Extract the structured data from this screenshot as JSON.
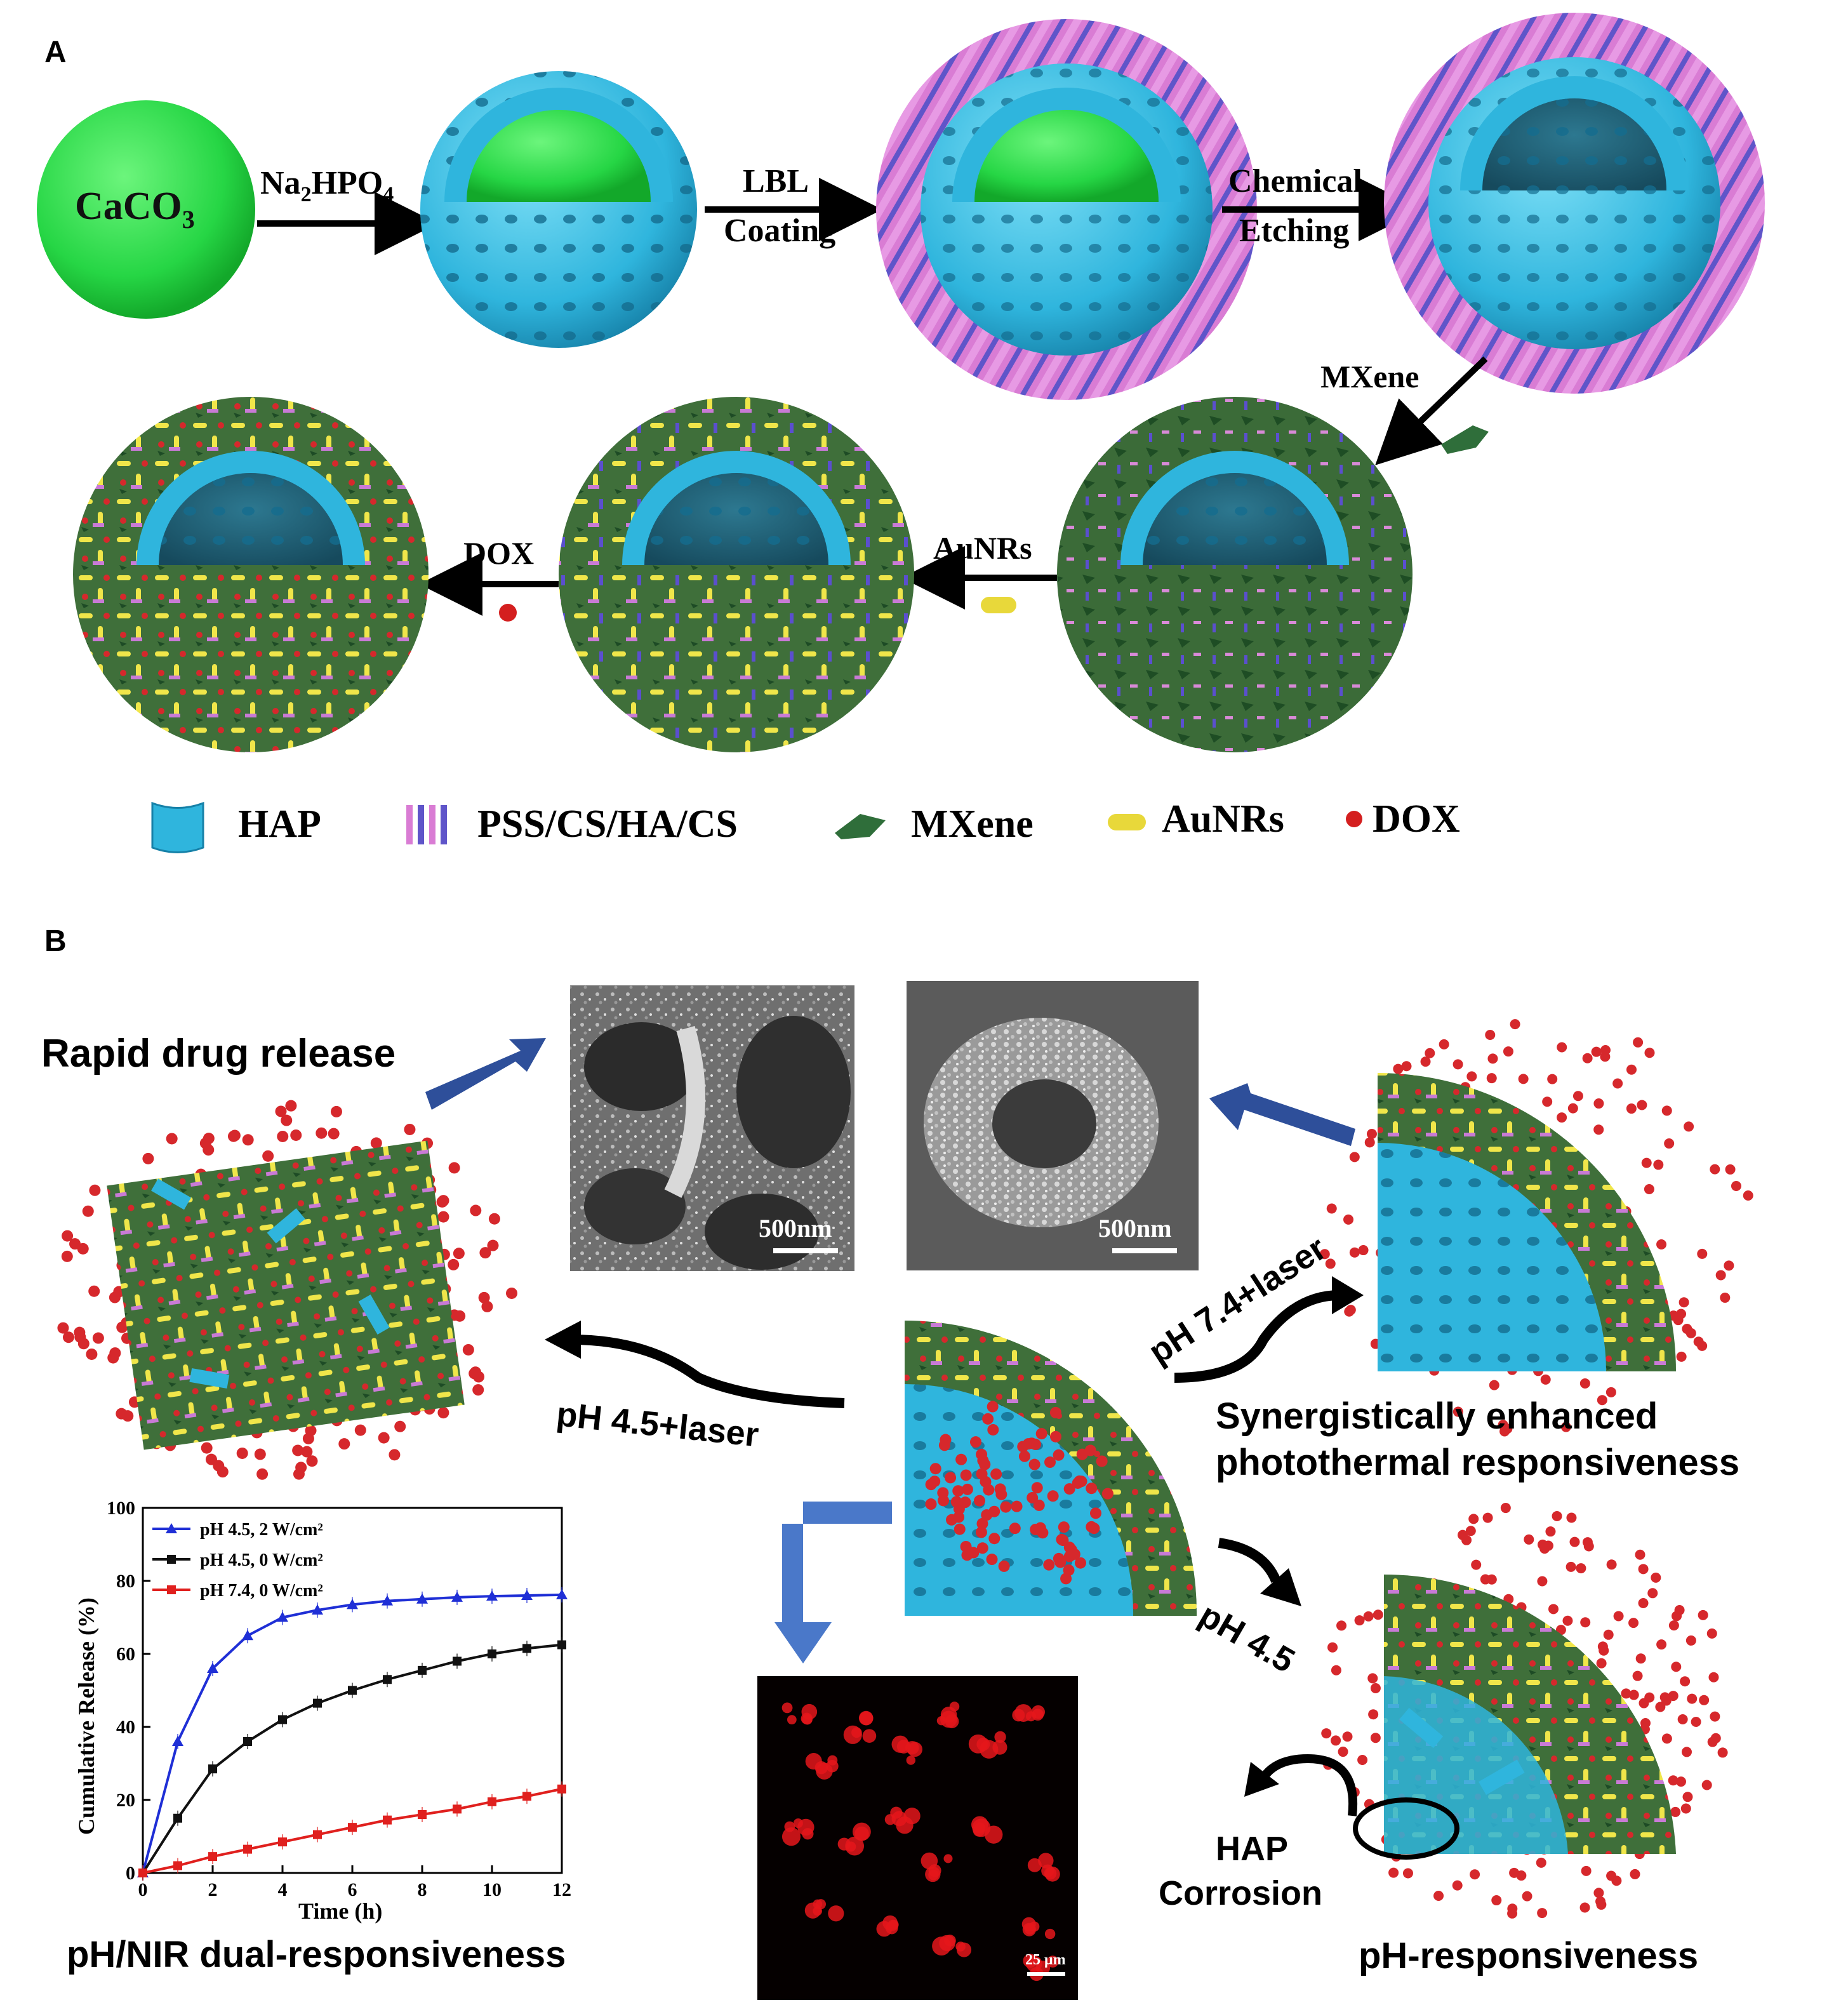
{
  "panel_a": {
    "label": "A",
    "core": "CaCO",
    "core_sub": "3",
    "step1": {
      "main": "Na",
      "sub1": "2",
      "mid": "HPO",
      "sub2": "4"
    },
    "step2": [
      "LBL",
      "Coating"
    ],
    "step3": [
      "Chemical",
      "Etching"
    ],
    "step4": "MXene",
    "step5": "AuNRs",
    "step6": "DOX",
    "legend": [
      "HAP",
      "PSS/CS/HA/CS",
      "MXene",
      "AuNRs",
      "DOX"
    ]
  },
  "panel_b": {
    "label": "B",
    "rapid_release": "Rapid drug release",
    "sem_scale_1": "500nm",
    "sem_scale_2": "500nm",
    "arrow_laser_45": "pH 4.5+laser",
    "arrow_laser_74": "pH 7.4+laser",
    "arrow_ph45": "pH 4.5",
    "synergy_1": "Synergistically enhanced",
    "synergy_2": "photothermal responsiveness",
    "hap_corrosion_1": "HAP",
    "hap_corrosion_2": "Corrosion",
    "ph_responsive": "pH-responsiveness",
    "dual": "pH/NIR dual-responsiveness",
    "confocal_scale": "25  μm"
  },
  "chart_data": {
    "type": "line",
    "xlabel": "Time (h)",
    "ylabel": "Cumulative Release (%)",
    "xlim": [
      0,
      12
    ],
    "ylim": [
      0,
      100
    ],
    "xticks": [
      0,
      2,
      4,
      6,
      8,
      10,
      12
    ],
    "yticks": [
      0,
      20,
      40,
      60,
      80,
      100
    ],
    "legend_position": "top-left",
    "x": [
      0,
      1,
      2,
      3,
      4,
      5,
      6,
      7,
      8,
      9,
      10,
      11,
      12
    ],
    "series": [
      {
        "name": "pH 4.5, 2 W/cm²",
        "color": "#1f2fd6",
        "marker": "triangle",
        "values": [
          0,
          36,
          56,
          65,
          70,
          72,
          73.5,
          74.5,
          75,
          75.5,
          75.8,
          76,
          76.2
        ]
      },
      {
        "name": "pH 4.5, 0 W/cm²",
        "color": "#111111",
        "marker": "square",
        "values": [
          0,
          15,
          28.5,
          36,
          42,
          46.5,
          50,
          53,
          55.5,
          58,
          60,
          61.5,
          62.5
        ]
      },
      {
        "name": "pH 7.4, 0 W/cm²",
        "color": "#e0201e",
        "marker": "square",
        "values": [
          0,
          2,
          4.5,
          6.5,
          8.5,
          10.5,
          12.5,
          14.5,
          16,
          17.5,
          19.5,
          21,
          23
        ]
      }
    ]
  }
}
